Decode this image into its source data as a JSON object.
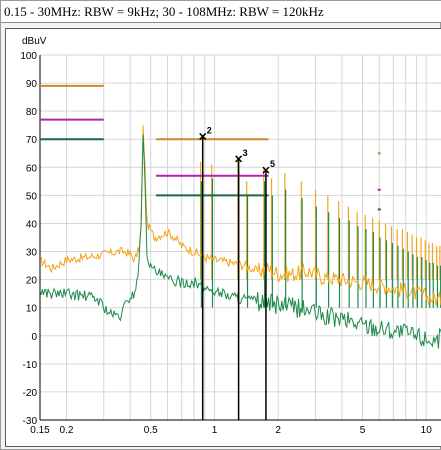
{
  "window": {
    "title": "0.15 - 30MHz: RBW = 9kHz; 30 - 108MHz: RBW = 120kHz"
  },
  "chart_data": {
    "type": "line",
    "title": "",
    "xlabel": "",
    "ylabel": "dBuV",
    "x_scale": "log",
    "xlim": [
      0.15,
      12
    ],
    "ylim": [
      -30,
      100
    ],
    "grid": true,
    "x_tick_labels": [
      "0.15",
      "0.2",
      "0.5",
      "1",
      "2",
      "5",
      "10"
    ],
    "x_ticks": [
      0.15,
      0.2,
      0.5,
      1,
      2,
      5,
      10
    ],
    "y_ticks": [
      100,
      90,
      80,
      70,
      60,
      50,
      40,
      30,
      20,
      10,
      0,
      -10,
      -20,
      -30
    ],
    "colors": {
      "quasi_peak": "#f5a418",
      "average": "#1d8a4c",
      "limit_qp": "#c88a2c",
      "limit_class": "#b520b5",
      "limit_avg": "#1c6a40",
      "marker": "#000000"
    },
    "series": [
      {
        "key": "quasi_peak",
        "points": [
          [
            0.15,
            27
          ],
          [
            0.17,
            24
          ],
          [
            0.2,
            27
          ],
          [
            0.25,
            28
          ],
          [
            0.3,
            29
          ],
          [
            0.35,
            30
          ],
          [
            0.38,
            30
          ],
          [
            0.4,
            29
          ],
          [
            0.42,
            27
          ],
          [
            0.44,
            31
          ],
          [
            0.45,
            38
          ],
          [
            0.46,
            74
          ],
          [
            0.47,
            60
          ],
          [
            0.48,
            40
          ],
          [
            0.52,
            35
          ],
          [
            0.6,
            37
          ],
          [
            0.65,
            35
          ],
          [
            0.7,
            32
          ],
          [
            0.8,
            30
          ],
          [
            0.9,
            28
          ],
          [
            1.0,
            27
          ],
          [
            1.2,
            26
          ],
          [
            1.4,
            25
          ],
          [
            1.6,
            23
          ],
          [
            1.8,
            24
          ],
          [
            2.0,
            22
          ],
          [
            2.4,
            22
          ],
          [
            2.8,
            23
          ],
          [
            3.2,
            21
          ],
          [
            4.0,
            20
          ],
          [
            5.0,
            19
          ],
          [
            6.0,
            18
          ],
          [
            7.0,
            17
          ],
          [
            8.0,
            16
          ],
          [
            9.0,
            15
          ],
          [
            10.0,
            14
          ],
          [
            11.0,
            13
          ],
          [
            12.0,
            13
          ]
        ]
      },
      {
        "key": "average",
        "points": [
          [
            0.15,
            16
          ],
          [
            0.17,
            15
          ],
          [
            0.2,
            15
          ],
          [
            0.25,
            14
          ],
          [
            0.28,
            13
          ],
          [
            0.32,
            8
          ],
          [
            0.34,
            7
          ],
          [
            0.36,
            7
          ],
          [
            0.38,
            11
          ],
          [
            0.4,
            14
          ],
          [
            0.42,
            15
          ],
          [
            0.44,
            25
          ],
          [
            0.45,
            40
          ],
          [
            0.46,
            71
          ],
          [
            0.47,
            55
          ],
          [
            0.48,
            30
          ],
          [
            0.5,
            24
          ],
          [
            0.55,
            22
          ],
          [
            0.6,
            20
          ],
          [
            0.7,
            19
          ],
          [
            0.8,
            19
          ],
          [
            0.9,
            17
          ],
          [
            1.0,
            16
          ],
          [
            1.2,
            14
          ],
          [
            1.4,
            13
          ],
          [
            1.6,
            12
          ],
          [
            2.0,
            11
          ],
          [
            2.4,
            10
          ],
          [
            2.8,
            9
          ],
          [
            3.2,
            7
          ],
          [
            4.0,
            6
          ],
          [
            5.0,
            4
          ],
          [
            6.0,
            3
          ],
          [
            7.0,
            2
          ],
          [
            8.0,
            1
          ],
          [
            9.0,
            0
          ],
          [
            10.0,
            -1
          ],
          [
            11.0,
            -1
          ],
          [
            12.0,
            -1
          ]
        ]
      }
    ],
    "harmonics": [
      {
        "x": 0.86,
        "qp": 62,
        "avg": 55
      },
      {
        "x": 0.97,
        "qp": 61,
        "avg": 56
      },
      {
        "x": 1.29,
        "qp": 64,
        "avg": 59
      },
      {
        "x": 1.42,
        "qp": 55,
        "avg": 50
      },
      {
        "x": 1.71,
        "qp": 60,
        "avg": 55
      },
      {
        "x": 1.86,
        "qp": 56,
        "avg": 50
      },
      {
        "x": 2.15,
        "qp": 58,
        "avg": 52
      },
      {
        "x": 2.57,
        "qp": 55,
        "avg": 49
      },
      {
        "x": 3.0,
        "qp": 52,
        "avg": 46
      },
      {
        "x": 3.43,
        "qp": 50,
        "avg": 44
      },
      {
        "x": 3.86,
        "qp": 48,
        "avg": 42
      },
      {
        "x": 4.29,
        "qp": 46,
        "avg": 41
      },
      {
        "x": 4.72,
        "qp": 44,
        "avg": 39
      },
      {
        "x": 5.15,
        "qp": 43,
        "avg": 38
      },
      {
        "x": 5.58,
        "qp": 42,
        "avg": 37
      },
      {
        "x": 6.0,
        "qp": 41,
        "avg": 35
      },
      {
        "x": 6.43,
        "qp": 40,
        "avg": 34
      },
      {
        "x": 6.86,
        "qp": 39,
        "avg": 33
      },
      {
        "x": 7.29,
        "qp": 38,
        "avg": 32
      },
      {
        "x": 7.72,
        "qp": 38,
        "avg": 31
      },
      {
        "x": 8.15,
        "qp": 37,
        "avg": 30
      },
      {
        "x": 8.58,
        "qp": 36,
        "avg": 29
      },
      {
        "x": 9.0,
        "qp": 35,
        "avg": 28
      },
      {
        "x": 9.45,
        "qp": 35,
        "avg": 28
      },
      {
        "x": 9.9,
        "qp": 34,
        "avg": 27
      },
      {
        "x": 10.3,
        "qp": 33,
        "avg": 26
      },
      {
        "x": 10.7,
        "qp": 33,
        "avg": 26
      },
      {
        "x": 11.2,
        "qp": 32,
        "avg": 25
      },
      {
        "x": 11.6,
        "qp": 32,
        "avg": 25
      }
    ],
    "limit_lines": [
      {
        "key": "limit_qp",
        "x1": 0.15,
        "x2": 0.3,
        "y": 89
      },
      {
        "key": "limit_class",
        "x1": 0.15,
        "x2": 0.3,
        "y": 77
      },
      {
        "key": "limit_avg",
        "x1": 0.15,
        "x2": 0.3,
        "y": 70
      },
      {
        "key": "limit_qp",
        "x1": 0.53,
        "x2": 1.8,
        "y": 70
      },
      {
        "key": "limit_class",
        "x1": 0.53,
        "x2": 1.8,
        "y": 57
      },
      {
        "key": "limit_avg",
        "x1": 0.53,
        "x2": 1.8,
        "y": 50
      },
      {
        "key": "limit_qp",
        "x1": 5.9,
        "x2": 6.1,
        "y": 65
      },
      {
        "key": "limit_class",
        "x1": 5.9,
        "x2": 6.1,
        "y": 52
      },
      {
        "key": "limit_avg",
        "x1": 5.9,
        "x2": 6.1,
        "y": 45
      }
    ],
    "markers": [
      {
        "label": "2",
        "x": 0.88,
        "y": 71
      },
      {
        "label": "3",
        "x": 1.3,
        "y": 63
      },
      {
        "label": "5",
        "x": 1.75,
        "y": 59
      }
    ]
  }
}
